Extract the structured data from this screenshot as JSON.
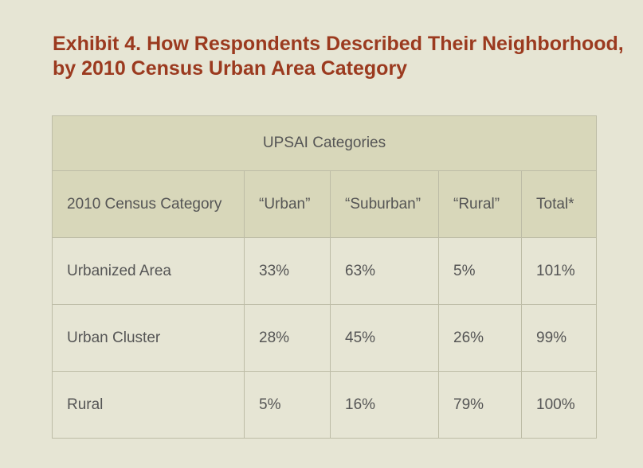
{
  "title": "Exhibit 4. How Respondents Described Their Neighborhood, by 2010 Census Urban Area Category",
  "table": {
    "group_header": "UPSAI Categories",
    "columns": [
      "2010 Census Category",
      "“Urban”",
      "“Suburban”",
      "“Rural”",
      "Total*"
    ],
    "rows": [
      [
        "Urbanized Area",
        "33%",
        "63%",
        "5%",
        "101%"
      ],
      [
        "Urban Cluster",
        "28%",
        "45%",
        "26%",
        "99%"
      ],
      [
        "Rural",
        "5%",
        "16%",
        "79%",
        "100%"
      ]
    ]
  }
}
